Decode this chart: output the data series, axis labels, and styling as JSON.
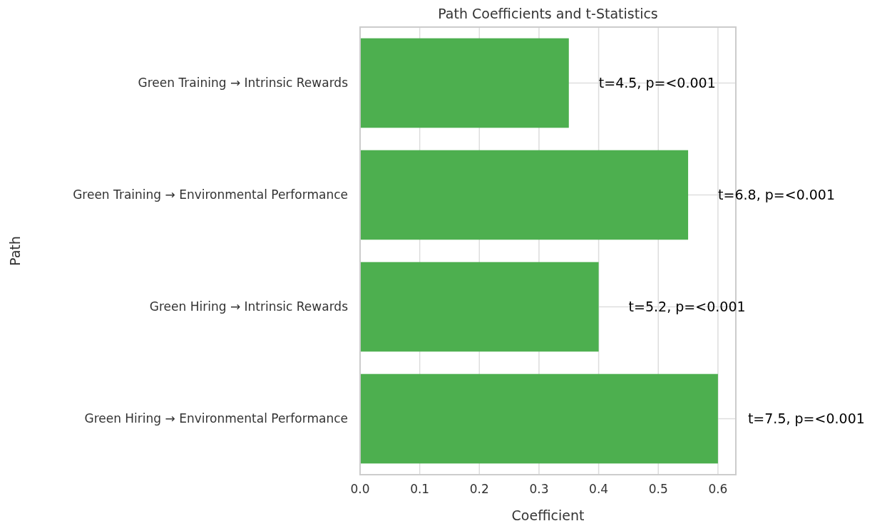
{
  "chart_data": {
    "type": "bar",
    "orientation": "horizontal",
    "title": "Path Coefficients and t-Statistics",
    "xlabel": "Coefficient",
    "ylabel": "Path",
    "categories": [
      "Green Training → Intrinsic Rewards",
      "Green Training → Environmental Performance",
      "Green Hiring → Intrinsic Rewards",
      "Green Hiring → Environmental Performance"
    ],
    "values": [
      0.35,
      0.55,
      0.4,
      0.6
    ],
    "color": "#4daf4f",
    "xlim": [
      0,
      0.63
    ],
    "xticks": [
      {
        "value": 0,
        "label": "0.0"
      },
      0.1,
      0.2,
      0.3,
      0.4,
      0.5,
      0.6
    ],
    "grid": true,
    "annotations": [
      "t=4.5, p=<0.001",
      "t=6.8, p=<0.001",
      "t=5.2, p=<0.001",
      "t=7.5, p=<0.001"
    ]
  }
}
